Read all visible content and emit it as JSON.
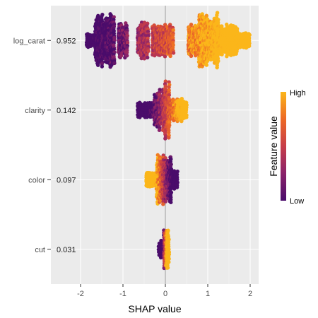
{
  "chart_data": {
    "type": "scatter",
    "subtype": "beeswarm",
    "title": "",
    "xlabel": "SHAP value",
    "ylabel": "",
    "xlim": [
      -2.7,
      2.2
    ],
    "x_ticks": [
      -2,
      -1,
      0,
      1,
      2
    ],
    "x_tick_labels": [
      "-2",
      "-1",
      "0",
      "1",
      "2"
    ],
    "grid": true,
    "panel_background": "#ebebeb",
    "zero_line": 0,
    "features": [
      {
        "name": "log_carat",
        "importance": "0.952",
        "min": -1.9,
        "max": 2.0,
        "low_x": -1.4,
        "high_x": 1.0,
        "spread": 0.9,
        "clusters": [
          [
            -1.85,
            -1.65,
            0.25
          ],
          [
            -1.65,
            -1.2,
            0.95
          ],
          [
            -1.1,
            -0.9,
            0.65
          ],
          [
            -0.65,
            -0.4,
            0.65
          ],
          [
            -0.3,
            0.2,
            0.55
          ],
          [
            0.55,
            0.8,
            0.6
          ],
          [
            0.8,
            1.25,
            1.0
          ],
          [
            1.25,
            1.7,
            0.55
          ],
          [
            1.7,
            2.0,
            0.3
          ]
        ]
      },
      {
        "name": "clarity",
        "importance": "0.142",
        "min": -0.65,
        "max": 0.5,
        "low_x": -0.3,
        "high_x": 0.3,
        "spread": 0.9,
        "clusters": [
          [
            -0.65,
            -0.25,
            0.25
          ],
          [
            -0.25,
            0.0,
            0.75
          ],
          [
            0.0,
            0.1,
            1.0
          ],
          [
            0.1,
            0.5,
            0.4
          ]
        ]
      },
      {
        "name": "color",
        "importance": "0.097",
        "min": -0.45,
        "max": 0.3,
        "low_x": 0.12,
        "high_x": -0.2,
        "spread": 0.9,
        "clusters": [
          [
            -0.45,
            -0.2,
            0.25
          ],
          [
            -0.2,
            0.0,
            0.85
          ],
          [
            0.0,
            0.15,
            0.95
          ],
          [
            0.15,
            0.3,
            0.35
          ]
        ]
      },
      {
        "name": "cut",
        "importance": "0.031",
        "min": -0.15,
        "max": 0.1,
        "low_x": -0.05,
        "high_x": 0.03,
        "spread": 1.0,
        "clusters": [
          [
            -0.15,
            -0.03,
            0.3
          ],
          [
            -0.03,
            0.1,
            0.6
          ]
        ]
      }
    ],
    "legend": {
      "title": "Feature value",
      "high_label": "High",
      "low_label": "Low",
      "position": "right",
      "colors": [
        "#4a0c6b",
        "#8a226a",
        "#c73d49",
        "#ed6925",
        "#fbb61a"
      ]
    }
  }
}
